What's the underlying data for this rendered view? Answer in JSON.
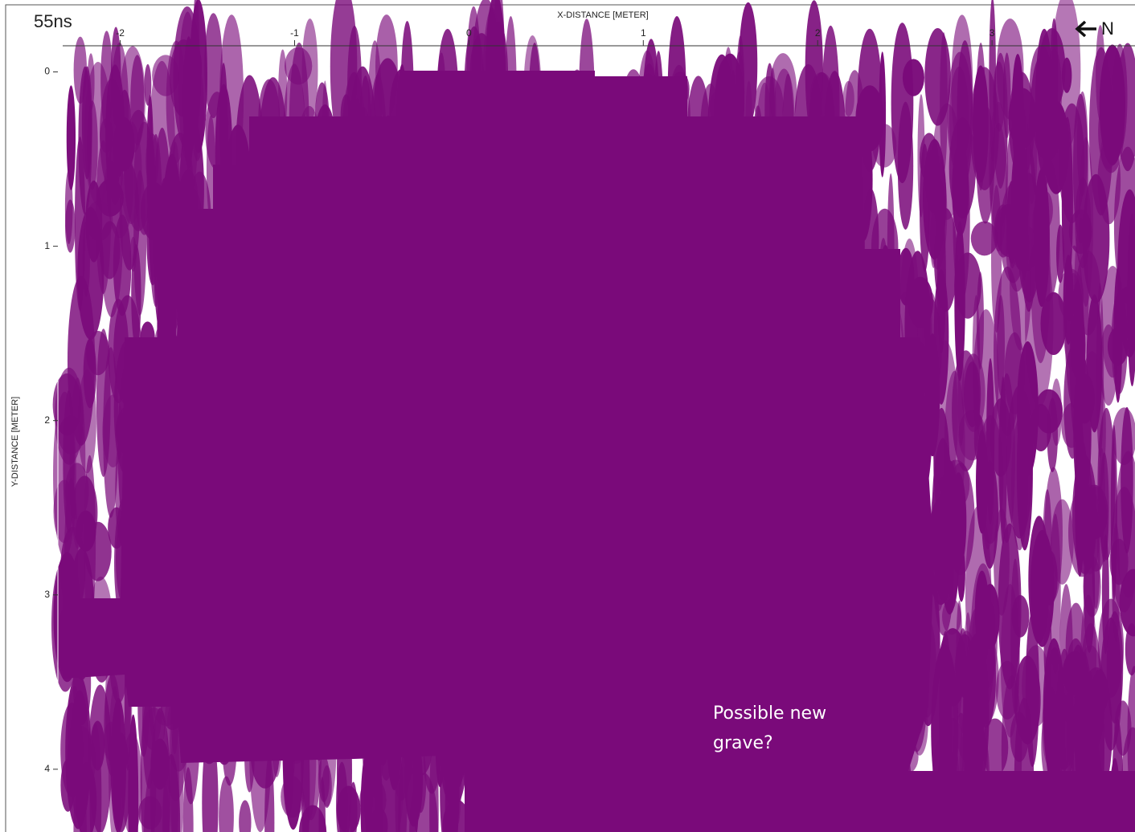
{
  "header": "55ns",
  "north_label": "N",
  "annotation": "Possible new grave?",
  "chart_data": {
    "type": "heatmap",
    "xlabel": "X-DISTANCE [METER]",
    "ylabel": "Y-DISTANCE [METER]",
    "xlim": [
      -2.33,
      3.82
    ],
    "ylim": [
      -0.15,
      4.36
    ],
    "y_inverted": true,
    "x_axis_position": "top",
    "xticks": [
      -2,
      -1,
      0,
      1,
      2,
      3
    ],
    "yticks": [
      0,
      1,
      2,
      3,
      4
    ]
  }
}
